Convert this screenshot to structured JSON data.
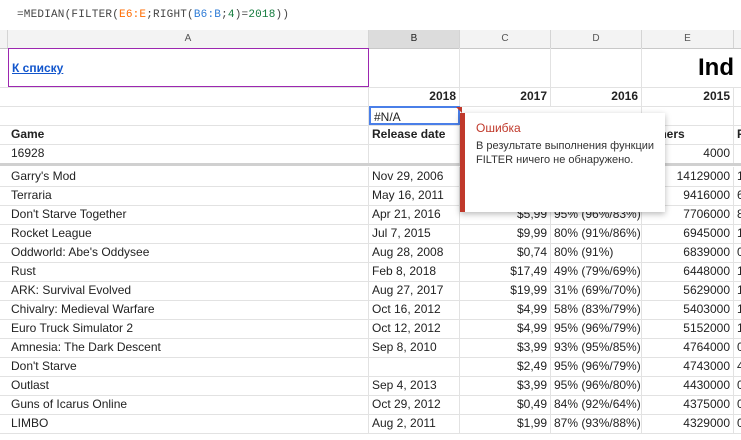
{
  "formula": {
    "prefix": "=MEDIAN(FILTER(",
    "ref1": "E6:E",
    "mid1": ";RIGHT(",
    "ref2": "B6:B",
    "mid2": ";",
    "num": "4",
    "mid3": ")=",
    "num2": "2018",
    "suffix": "))"
  },
  "columns": [
    "A",
    "B",
    "C",
    "D",
    "E"
  ],
  "header": {
    "back_link": "К списку",
    "title": "Ind",
    "years": [
      "2018",
      "2017",
      "2016",
      "2015"
    ],
    "selected_value": "#N/A",
    "col_game": "Game",
    "col_release": "Release date",
    "col_owners": "wners",
    "col_p": "P",
    "total_game": "16928",
    "total_owners": "4000"
  },
  "tooltip": {
    "title": "Ошибка",
    "body": "В результате выполнения функции FILTER ничего не обнаружено."
  },
  "rows": [
    {
      "game": "Garry's Mod",
      "date": "Nov 29, 2006",
      "price": "",
      "score": "",
      "owners": "14129000",
      "p": "1"
    },
    {
      "game": "Terraria",
      "date": "May 16, 2011",
      "price": "",
      "score": "",
      "owners": "9416000",
      "p": "6"
    },
    {
      "game": "Don't Starve Together",
      "date": "Apr 21, 2016",
      "price": "$5,99",
      "score": "95% (96%/83%)",
      "owners": "7706000",
      "p": "8"
    },
    {
      "game": "Rocket League",
      "date": "Jul 7, 2015",
      "price": "$9,99",
      "score": "80% (91%/86%)",
      "owners": "6945000",
      "p": "1"
    },
    {
      "game": "Oddworld: Abe's Oddysee",
      "date": "Aug 28, 2008",
      "price": "$0,74",
      "score": "80% (91%)",
      "owners": "6839000",
      "p": "0"
    },
    {
      "game": "Rust",
      "date": "Feb 8, 2018",
      "price": "$17,49",
      "score": "49% (79%/69%)",
      "owners": "6448000",
      "p": "1"
    },
    {
      "game": "ARK: Survival Evolved",
      "date": "Aug 27, 2017",
      "price": "$19,99",
      "score": "31% (69%/70%)",
      "owners": "5629000",
      "p": "1"
    },
    {
      "game": "Chivalry: Medieval Warfare",
      "date": "Oct 16, 2012",
      "price": "$4,99",
      "score": "58% (83%/79%)",
      "owners": "5403000",
      "p": "1"
    },
    {
      "game": "Euro Truck Simulator 2",
      "date": "Oct 12, 2012",
      "price": "$4,99",
      "score": "95% (96%/79%)",
      "owners": "5152000",
      "p": "1"
    },
    {
      "game": "Amnesia: The Dark Descent",
      "date": "Sep 8, 2010",
      "price": "$3,99",
      "score": "93% (95%/85%)",
      "owners": "4764000",
      "p": "0"
    },
    {
      "game": "Don't Starve",
      "date": "",
      "price": "$2,49",
      "score": "95% (96%/79%)",
      "owners": "4743000",
      "p": "4"
    },
    {
      "game": "Outlast",
      "date": "Sep 4, 2013",
      "price": "$3,99",
      "score": "95% (96%/80%)",
      "owners": "4430000",
      "p": "0"
    },
    {
      "game": "Guns of Icarus Online",
      "date": "Oct 29, 2012",
      "price": "$0,49",
      "score": "84% (92%/64%)",
      "owners": "4375000",
      "p": "0"
    },
    {
      "game": "LIMBO",
      "date": "Aug 2, 2011",
      "price": "$1,99",
      "score": "87% (93%/88%)",
      "owners": "4329000",
      "p": "0"
    }
  ]
}
